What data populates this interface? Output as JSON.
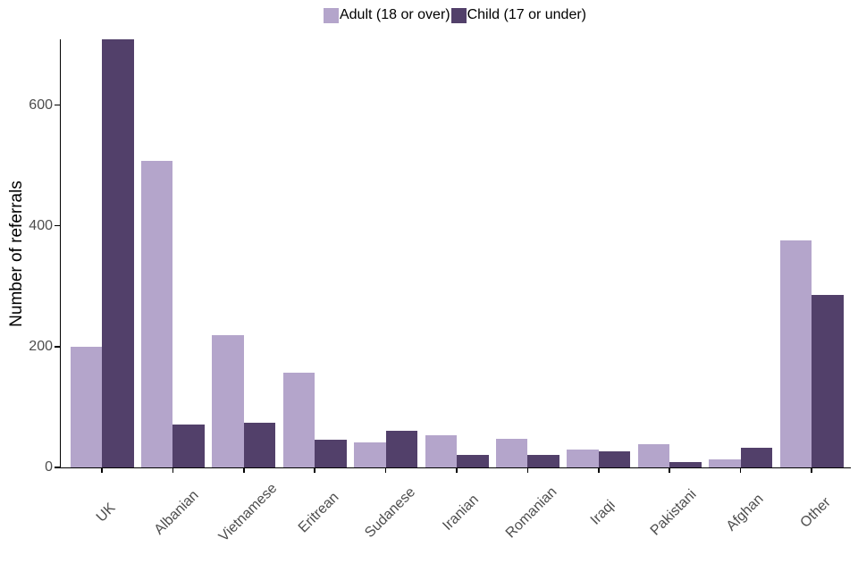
{
  "chart_data": {
    "type": "bar",
    "title": "",
    "xlabel": "",
    "ylabel": "Number of referrals",
    "categories": [
      "UK",
      "Albanian",
      "Vietnamese",
      "Eritrean",
      "Sudanese",
      "Iranian",
      "Romanian",
      "Iraqi",
      "Pakistani",
      "Afghan",
      "Other"
    ],
    "series": [
      {
        "name": "Adult (18 or over)",
        "color": "#b4a5cb",
        "values": [
          200,
          508,
          219,
          157,
          41,
          53,
          48,
          30,
          38,
          13,
          376
        ]
      },
      {
        "name": "Child (17 or under)",
        "color": "#52406a",
        "values": [
          710,
          71,
          74,
          46,
          61,
          21,
          20,
          27,
          9,
          33,
          286
        ]
      }
    ],
    "yticks": [
      0,
      200,
      400,
      600
    ],
    "ylim": [
      0,
      710
    ],
    "grid": false,
    "legend_position": "top-center"
  },
  "axis": {
    "text_color": "#4d4d4d",
    "title_color": "#000000",
    "line_color": "#000000"
  },
  "background": "#ffffff"
}
